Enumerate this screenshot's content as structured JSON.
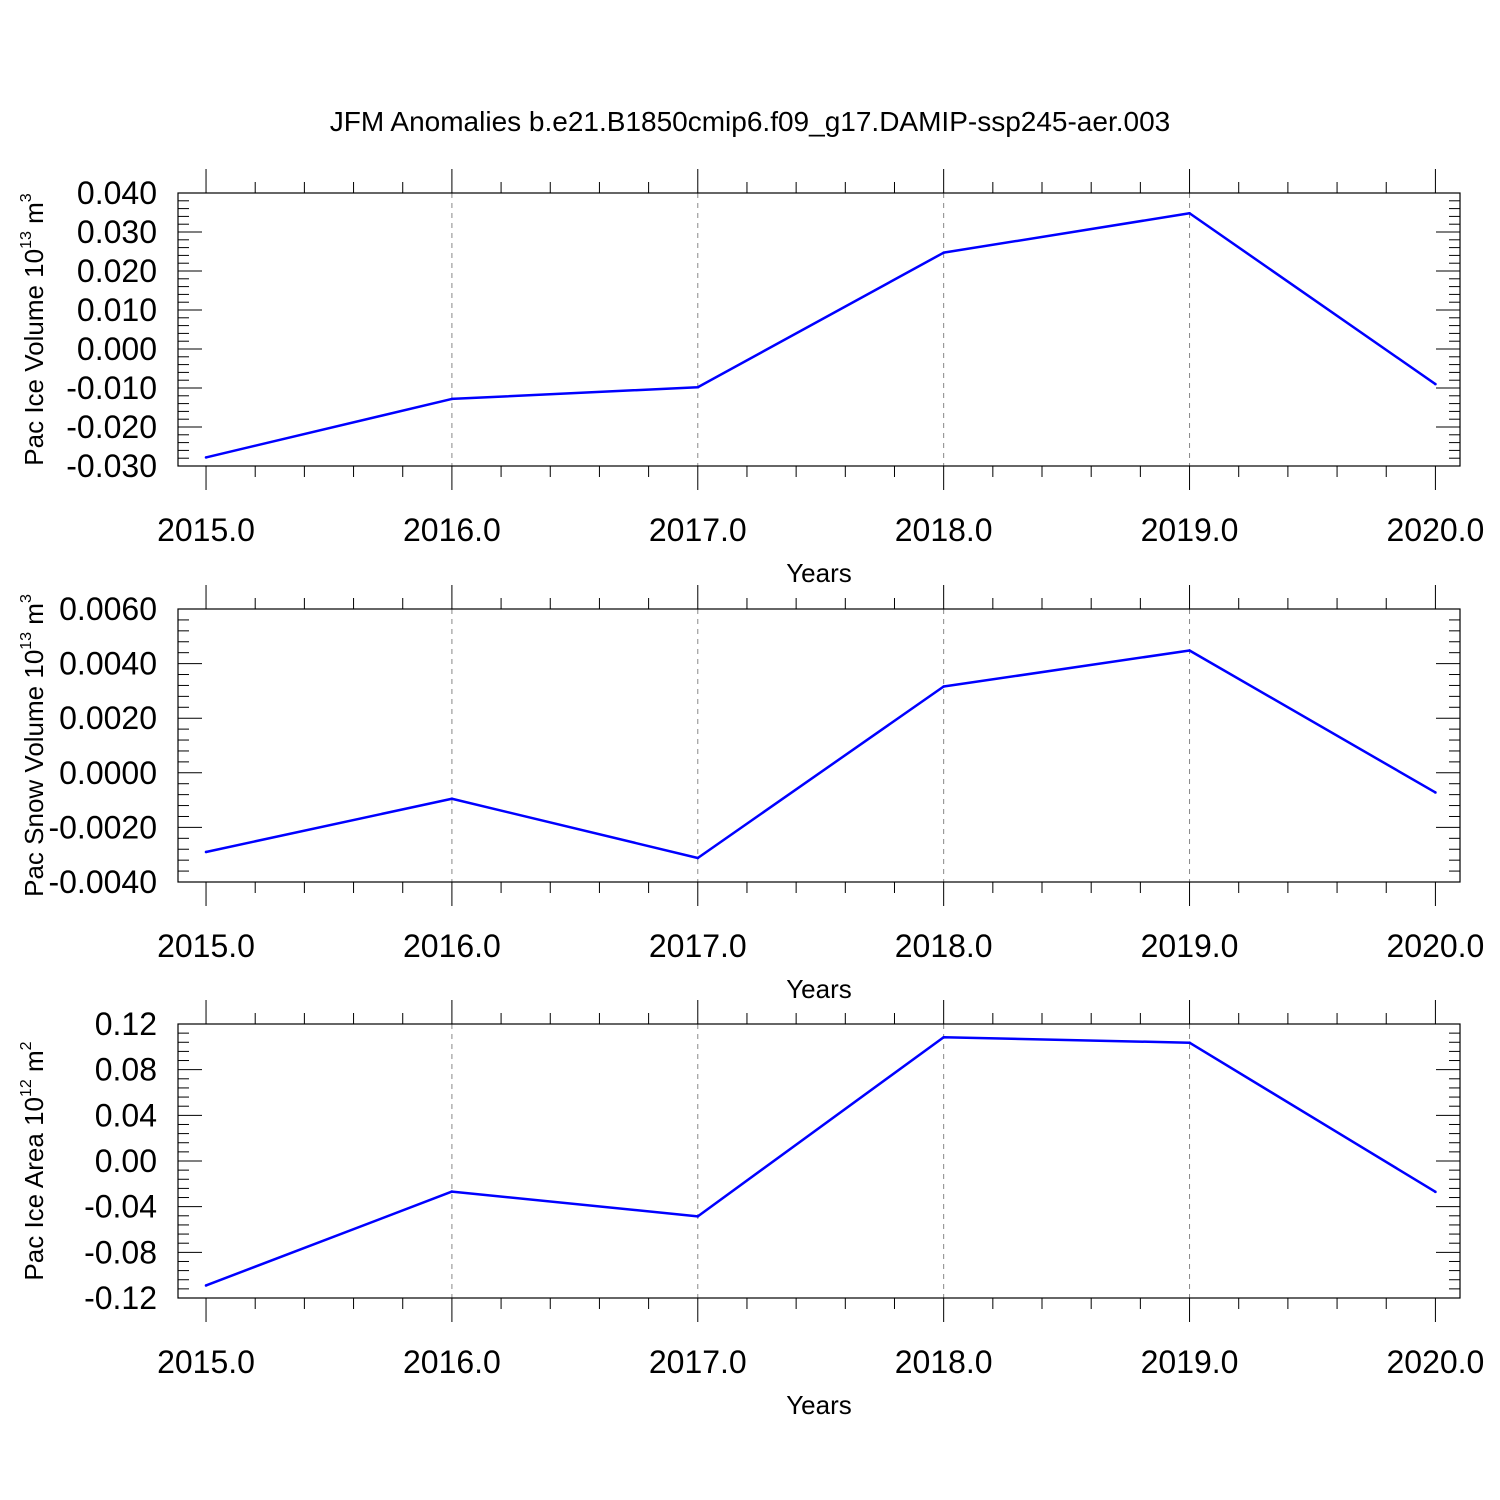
{
  "title": "JFM Anomalies b.e21.B1850cmip6.f09_g17.DAMIP-ssp245-aer.003",
  "chart_data": [
    {
      "type": "line",
      "title": "",
      "xlabel": "Years",
      "ylabel": "Pac Ice Volume 10",
      "ylabel_exp": "13",
      "ylabel_unit": "m",
      "ylabel_unit_exp": "3",
      "x": [
        2015,
        2016,
        2017,
        2018,
        2019,
        2020
      ],
      "xticks": [
        "2015.0",
        "2016.0",
        "2017.0",
        "2018.0",
        "2019.0",
        "2020.0"
      ],
      "xlim": [
        2014.886,
        2020.1
      ],
      "ylim": [
        -0.03,
        0.04
      ],
      "yticks": [
        0.04,
        0.03,
        0.02,
        0.01,
        0.0,
        -0.01,
        -0.02,
        -0.03
      ],
      "ytick_labels": [
        "0.040",
        "0.030",
        "0.020",
        "0.010",
        "0.000",
        "-0.010",
        "-0.020",
        "-0.030"
      ],
      "grid": "vertical dashed",
      "series": [
        {
          "values": [
            -0.0278,
            -0.0128,
            -0.0098,
            0.0247,
            0.0348,
            -0.009
          ],
          "color": "#0000ff"
        }
      ]
    },
    {
      "type": "line",
      "title": "",
      "xlabel": "Years",
      "ylabel": "Pac Snow Volume 10",
      "ylabel_exp": "13",
      "ylabel_unit": "m",
      "ylabel_unit_exp": "3",
      "x": [
        2015,
        2016,
        2017,
        2018,
        2019,
        2020
      ],
      "xticks": [
        "2015.0",
        "2016.0",
        "2017.0",
        "2018.0",
        "2019.0",
        "2020.0"
      ],
      "xlim": [
        2014.886,
        2020.1
      ],
      "ylim": [
        -0.004,
        0.006
      ],
      "yticks": [
        0.006,
        0.004,
        0.002,
        0.0,
        -0.002,
        -0.004
      ],
      "ytick_labels": [
        "0.0060",
        "0.0040",
        "0.0020",
        "0.0000",
        "-0.0020",
        "-0.0040"
      ],
      "grid": "vertical dashed",
      "series": [
        {
          "values": [
            -0.0029,
            -0.00095,
            -0.00312,
            0.00316,
            0.00448,
            -0.00072
          ],
          "color": "#0000ff"
        }
      ]
    },
    {
      "type": "line",
      "title": "",
      "xlabel": "Years",
      "ylabel": "Pac Ice Area 10",
      "ylabel_exp": "12",
      "ylabel_unit": "m",
      "ylabel_unit_exp": "2",
      "x": [
        2015,
        2016,
        2017,
        2018,
        2019,
        2020
      ],
      "xticks": [
        "2015.0",
        "2016.0",
        "2017.0",
        "2018.0",
        "2019.0",
        "2020.0"
      ],
      "xlim": [
        2014.886,
        2020.1
      ],
      "ylim": [
        -0.12,
        0.12
      ],
      "yticks": [
        0.12,
        0.08,
        0.04,
        0.0,
        -0.04,
        -0.08,
        -0.12
      ],
      "ytick_labels": [
        "0.12",
        "0.08",
        "0.04",
        "0.00",
        "-0.04",
        "-0.08",
        "-0.12"
      ],
      "grid": "vertical dashed",
      "series": [
        {
          "values": [
            -0.109,
            -0.0268,
            -0.0485,
            0.1084,
            0.1036,
            -0.027
          ],
          "color": "#0000ff"
        }
      ]
    }
  ]
}
